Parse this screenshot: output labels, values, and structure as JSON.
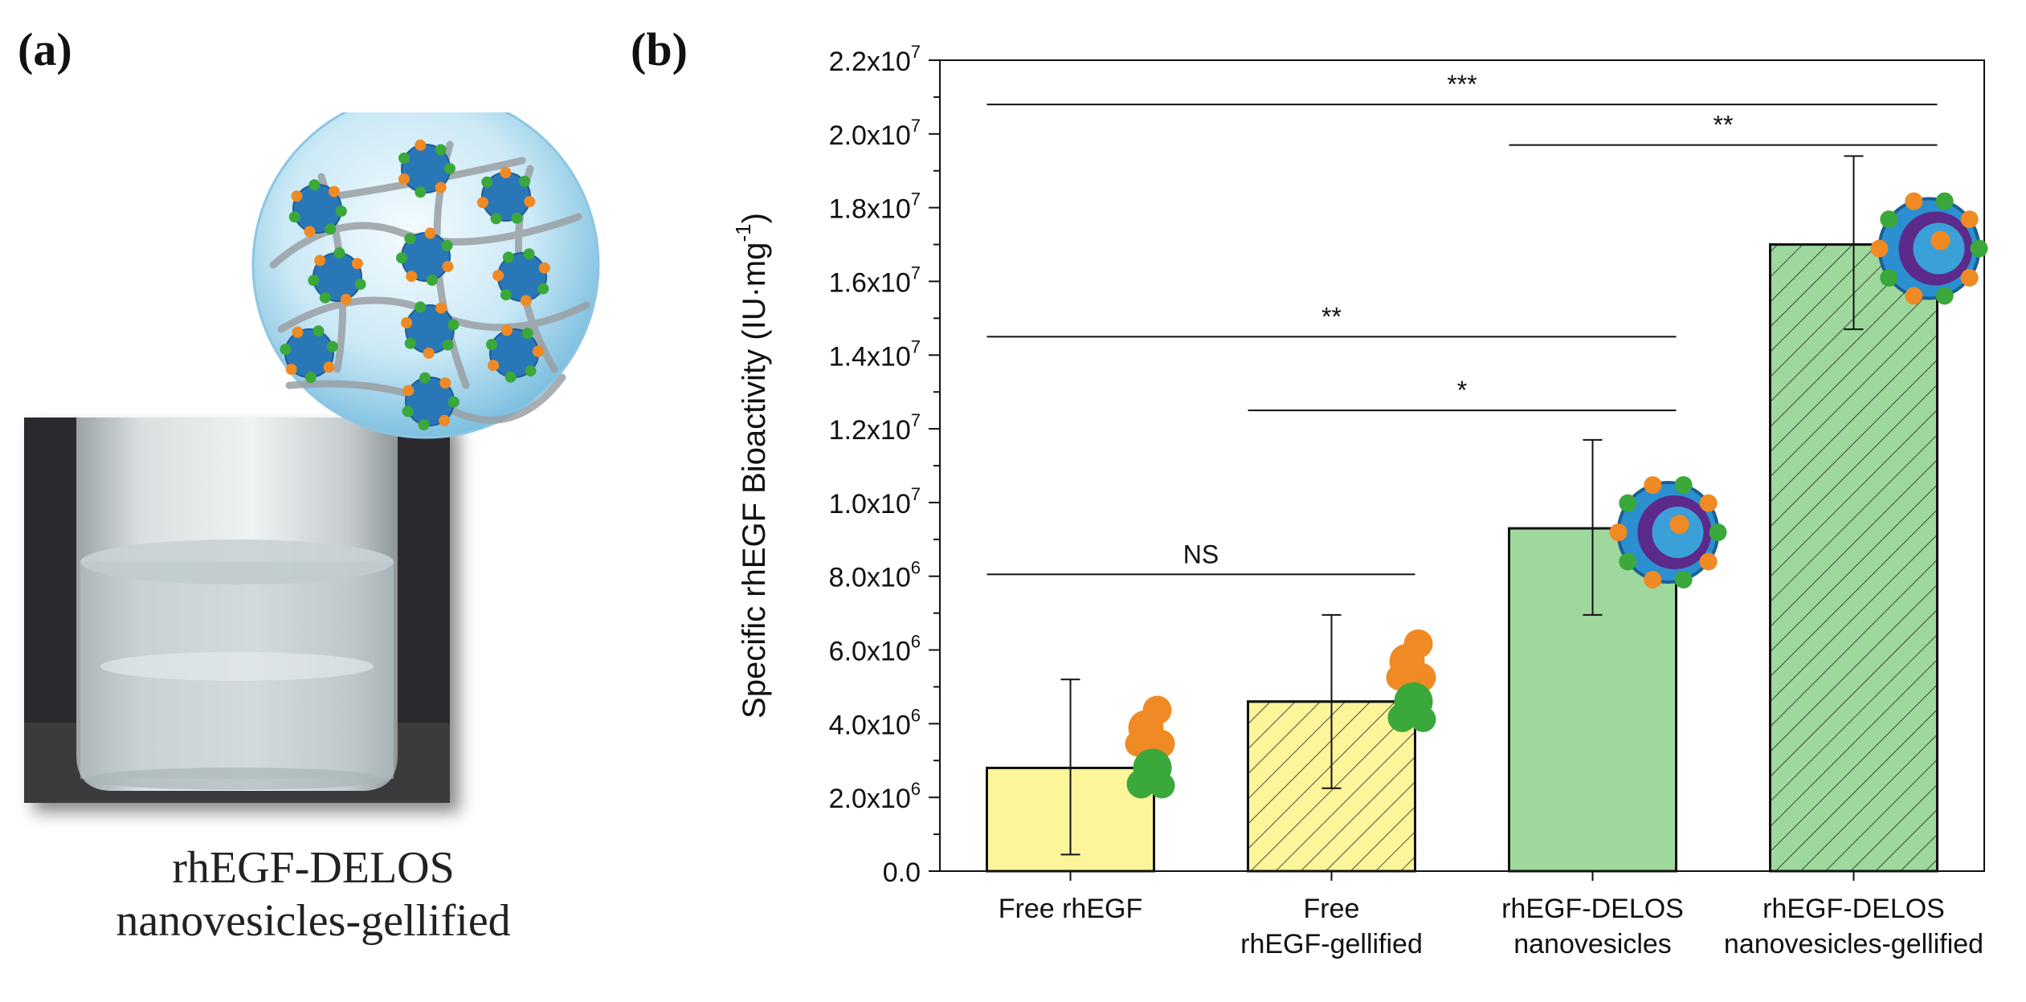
{
  "panel_a": {
    "label": "(a)",
    "caption_line1": "rhEGF-DELOS",
    "caption_line2": "nanovesicles-gellified"
  },
  "panel_b": {
    "label": "(b)"
  },
  "colors": {
    "yellow": "#fdf59a",
    "green": "#9ed89c",
    "edge": "#111111",
    "protein_orange": "#f08a24",
    "protein_green": "#3aa83a",
    "vesicle_blue": "#2a77b8",
    "gel_sphere": "#bfe3f2"
  },
  "chart_data": {
    "type": "bar",
    "categories": [
      [
        "Free rhEGF"
      ],
      [
        "Free",
        "rhEGF-gellified"
      ],
      [
        "rhEGF-DELOS",
        "nanovesicles"
      ],
      [
        "rhEGF-DELOS",
        "nanovesicles-gellified"
      ]
    ],
    "values": [
      2800000.0,
      4600000.0,
      9300000.0,
      17000000.0
    ],
    "error_low": [
      450000.0,
      2250000.0,
      6950000.0,
      14700000.0
    ],
    "error_high": [
      5200000.0,
      6950000.0,
      11700000.0,
      19400000.0
    ],
    "hatched": [
      false,
      true,
      false,
      true
    ],
    "bar_colors": [
      "yellow",
      "yellow",
      "green",
      "green"
    ],
    "ylabel_main": "Specific rhEGF Bioactivity (IU·mg",
    "ylabel_sup": "-1",
    "ylabel_close": ")",
    "ylim": [
      0,
      22000000.0
    ],
    "ytick_values": [
      0,
      2000000.0,
      4000000.0,
      6000000.0,
      8000000.0,
      10000000.0,
      12000000.0,
      14000000.0,
      16000000.0,
      18000000.0,
      20000000.0,
      22000000.0
    ],
    "ytick_labels": [
      {
        "base": "0.0",
        "exp": ""
      },
      {
        "base": "2.0x10",
        "exp": "6"
      },
      {
        "base": "4.0x10",
        "exp": "6"
      },
      {
        "base": "6.0x10",
        "exp": "6"
      },
      {
        "base": "8.0x10",
        "exp": "6"
      },
      {
        "base": "1.0x10",
        "exp": "7"
      },
      {
        "base": "1.2x10",
        "exp": "7"
      },
      {
        "base": "1.4x10",
        "exp": "7"
      },
      {
        "base": "1.6x10",
        "exp": "7"
      },
      {
        "base": "1.8x10",
        "exp": "7"
      },
      {
        "base": "2.0x10",
        "exp": "7"
      },
      {
        "base": "2.2x10",
        "exp": "7"
      }
    ],
    "significance": [
      {
        "label": "***",
        "from": 0,
        "to": 3,
        "y": 20800000.0
      },
      {
        "label": "**",
        "from": 2,
        "to": 3,
        "y": 19700000.0
      },
      {
        "label": "**",
        "from": 0,
        "to": 2,
        "y": 14500000.0
      },
      {
        "label": "*",
        "from": 1,
        "to": 2,
        "y": 12500000.0
      },
      {
        "label": "NS",
        "from": 0,
        "to": 1,
        "y": 8050000.0
      }
    ],
    "grid": false,
    "legend": "none"
  }
}
